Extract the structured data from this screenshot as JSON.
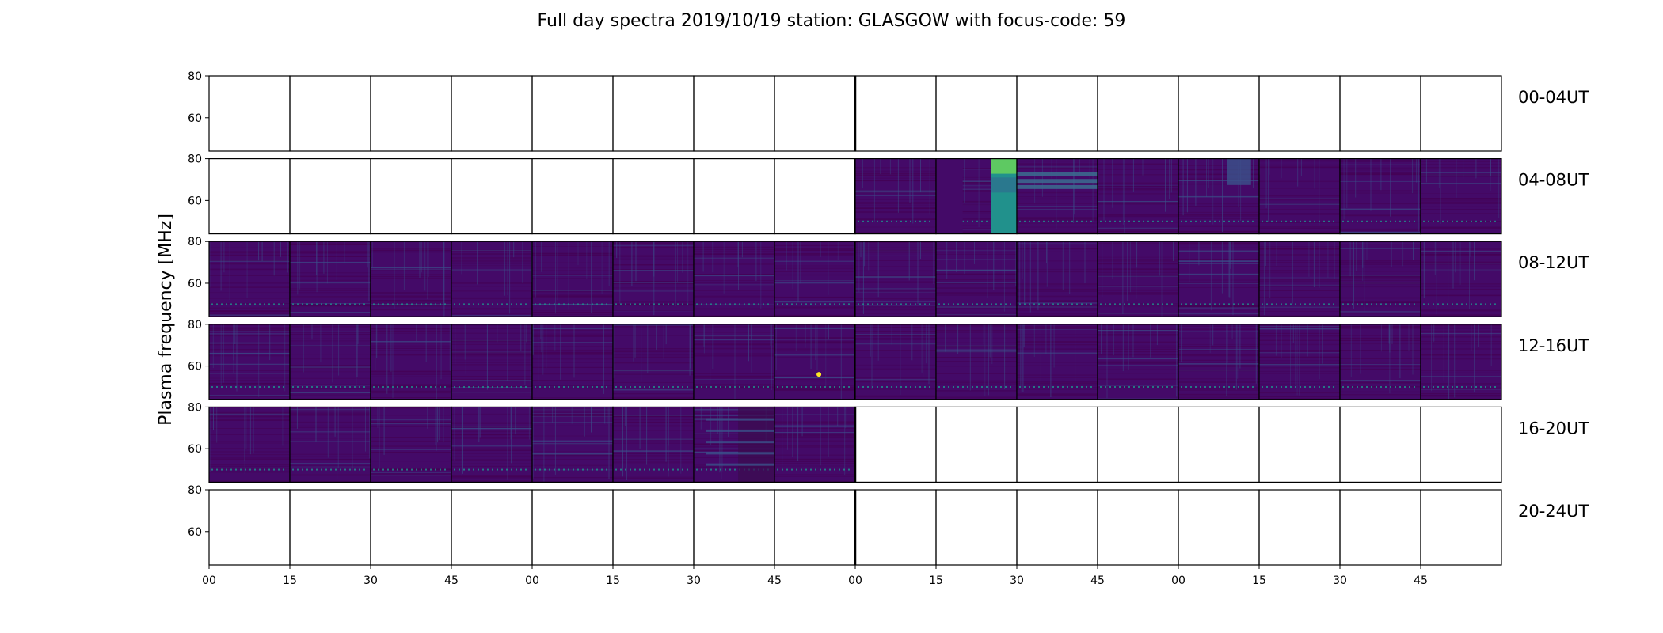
{
  "chart_data": {
    "type": "heatmap",
    "title": "Full day spectra 2019/10/19 station: GLASGOW with focus-code: 59",
    "ylabel": "Plasma frequency [MHz]",
    "xlabel": "",
    "ylim": [
      44,
      80
    ],
    "y_ticks": [
      "80",
      "60"
    ],
    "x_ticks": [
      "00",
      "15",
      "30",
      "45",
      "00",
      "15",
      "30",
      "45",
      "00",
      "15",
      "30",
      "45",
      "00",
      "15",
      "30",
      "45"
    ],
    "colormap": [
      "#440154",
      "#3b528b",
      "#21918c",
      "#5ec962",
      "#fde725"
    ],
    "background": "#440a68",
    "panel_minutes": 15,
    "rows": [
      {
        "label": "00-04UT",
        "filled_panels": []
      },
      {
        "label": "04-08UT",
        "filled_panels": [
          9,
          10,
          11,
          12,
          13,
          14,
          15,
          16
        ]
      },
      {
        "label": "08-12UT",
        "filled_panels": [
          1,
          2,
          3,
          4,
          5,
          6,
          7,
          8,
          9,
          10,
          11,
          12,
          13,
          14,
          15,
          16
        ]
      },
      {
        "label": "12-16UT",
        "filled_panels": [
          1,
          2,
          3,
          4,
          5,
          6,
          7,
          8,
          9,
          10,
          11,
          12,
          13,
          14,
          15,
          16
        ]
      },
      {
        "label": "16-20UT",
        "filled_panels": [
          1,
          2,
          3,
          4,
          5,
          6,
          7,
          8
        ]
      },
      {
        "label": "20-24UT",
        "filled_panels": []
      }
    ],
    "grid": false,
    "legend": "none"
  }
}
